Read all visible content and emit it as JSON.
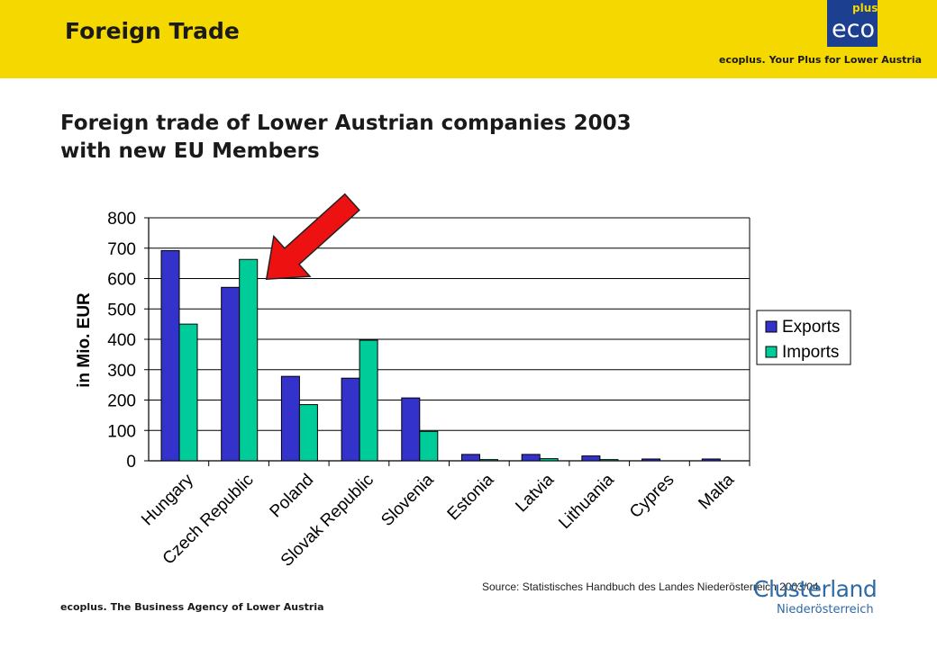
{
  "header": {
    "section_title": "Foreign Trade",
    "logo_plus": "plus",
    "logo_eco": "eco",
    "tagline": "ecoplus. Your Plus for Lower Austria",
    "band_color": "#f5d800"
  },
  "main": {
    "title_line1": "Foreign trade of Lower Austrian companies 2003",
    "title_line2": "with new EU Members"
  },
  "chart_data": {
    "type": "bar",
    "categories": [
      "Hungary",
      "Czech Republic",
      "Poland",
      "Slovak Republic",
      "Slovenia",
      "Estonia",
      "Latvia",
      "Lithuania",
      "Cypres",
      "Malta"
    ],
    "series": [
      {
        "name": "Exports",
        "color": "#3333cc",
        "values": [
          692,
          571,
          278,
          272,
          207,
          21,
          21,
          16,
          6,
          6
        ]
      },
      {
        "name": "Imports",
        "color": "#00cc99",
        "values": [
          450,
          663,
          185,
          397,
          97,
          4,
          7,
          4,
          0,
          0
        ]
      }
    ],
    "ylabel": "in Mio. EUR",
    "ylim": [
      0,
      800
    ],
    "yticks": [
      0,
      100,
      200,
      300,
      400,
      500,
      600,
      700,
      800
    ],
    "grid": true,
    "legend_position": "right",
    "annotation": "red arrow pointing to Czech Republic imports"
  },
  "footer": {
    "source": "Source: Statistisches Handbuch des Landes Niederösterreich 2003/04",
    "agency": "ecoplus. The Business Agency of Lower Austria",
    "cluster_main": "Clusterland",
    "cluster_sub": "Niederösterreich"
  }
}
